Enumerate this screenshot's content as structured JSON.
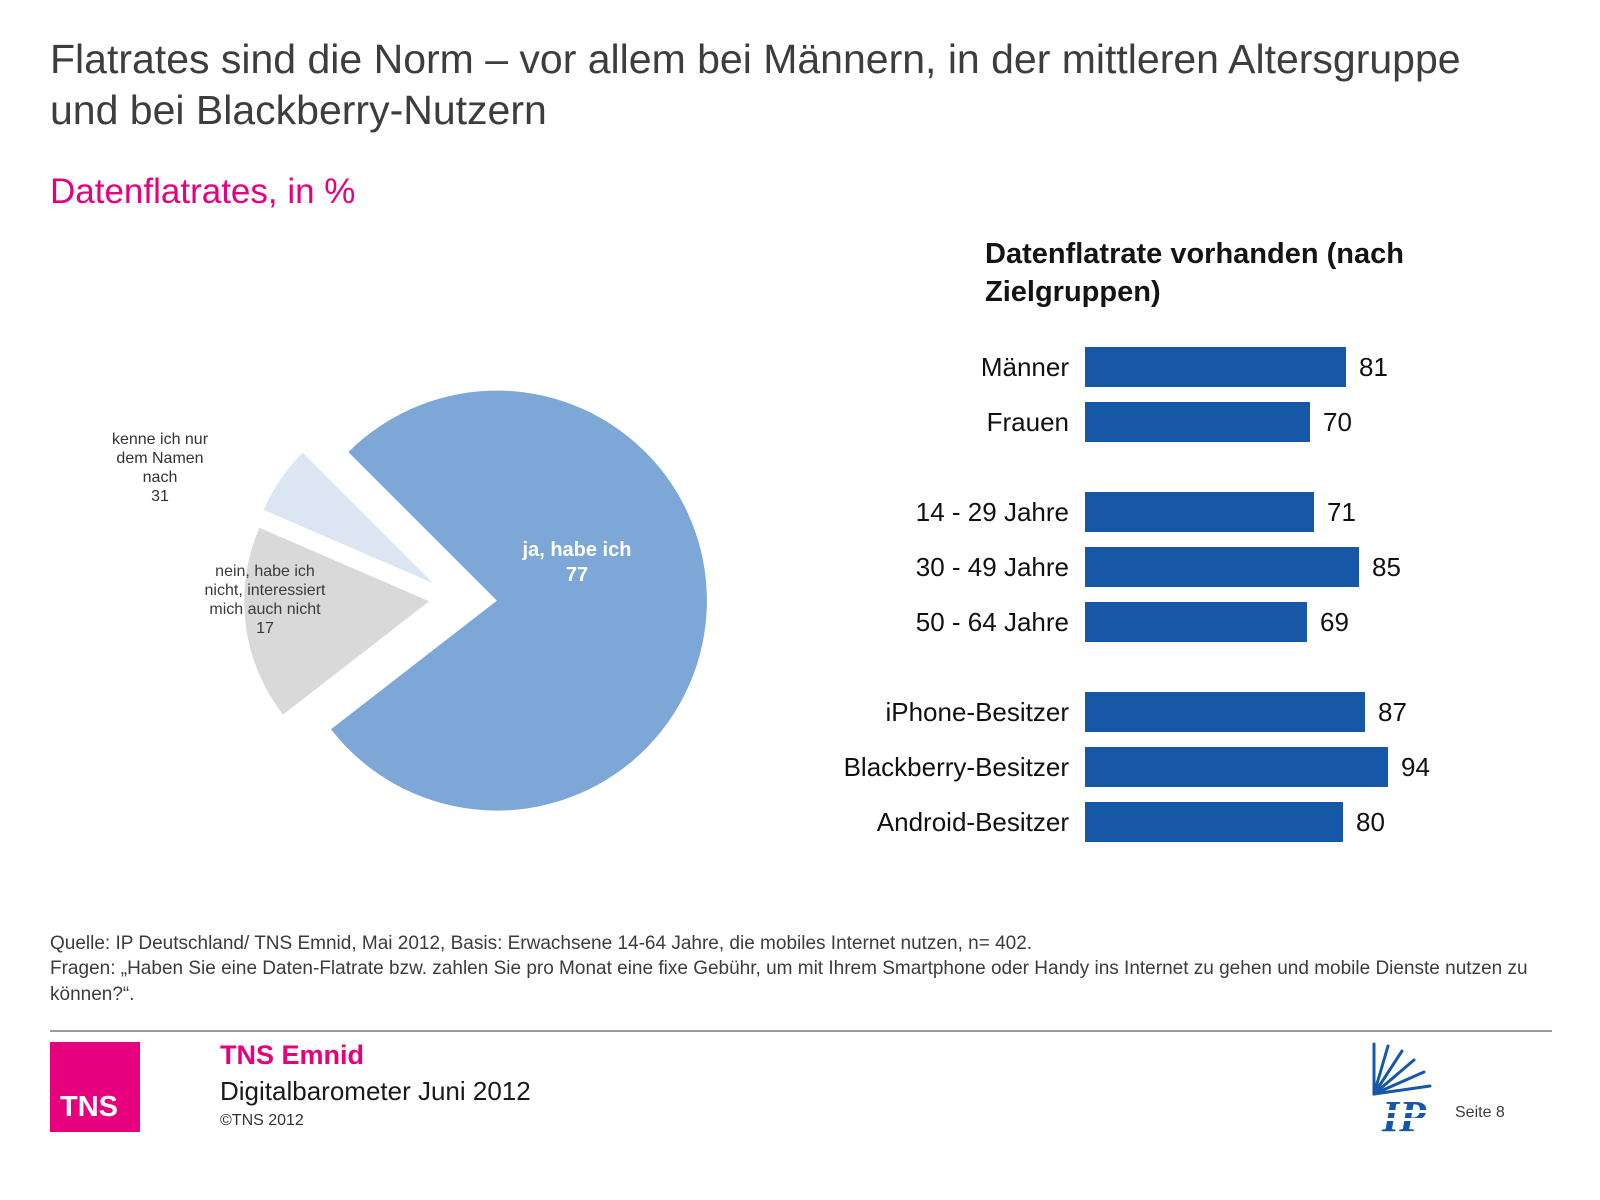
{
  "page": {
    "title": "Flatrates sind die Norm – vor allem bei Männern, in der mittleren Altersgruppe und bei Blackberry-Nutzern",
    "subtitle": "Datenflatrates, in %"
  },
  "chart_data": [
    {
      "type": "pie",
      "title": "Datenflatrates, in %",
      "unit": "%",
      "start_angle_deg": -45,
      "slices": [
        {
          "label": "ja, habe ich",
          "value": 77,
          "color": "#7da7d7",
          "exploded": true,
          "label_color": "#ffffff"
        },
        {
          "label": "nein, habe ich nicht, interessiert mich auch nicht",
          "value": 17,
          "color": "#d9d9d9",
          "label_color": "#3a3a3a"
        },
        {
          "label": "kenne ich nur dem Namen nach",
          "value": 31,
          "color": "#dce6f2",
          "label_color": "#333333"
        }
      ]
    },
    {
      "type": "bar",
      "orientation": "horizontal",
      "title": "Datenflatrate vorhanden (nach Zielgruppen)",
      "bar_color": "#1757a8",
      "xlim": [
        0,
        100
      ],
      "categories": [
        "Männer",
        "Frauen",
        "14 - 29 Jahre",
        "30 - 49 Jahre",
        "50 - 64 Jahre",
        "iPhone-Besitzer",
        "Blackberry-Besitzer",
        "Android-Besitzer"
      ],
      "values": [
        81,
        70,
        71,
        85,
        69,
        87,
        94,
        80
      ],
      "groups": [
        [
          0,
          1
        ],
        [
          2,
          3,
          4
        ],
        [
          5,
          6,
          7
        ]
      ],
      "legend": "none",
      "grid": false
    }
  ],
  "footer": {
    "source": "Quelle: IP Deutschland/ TNS Emnid, Mai 2012, Basis: Erwachsene 14-64 Jahre, die mobiles Internet nutzen, n= 402.",
    "question": "Fragen: „Haben Sie eine Daten-Flatrate bzw. zahlen Sie pro Monat eine fixe Gebühr, um mit Ihrem Smartphone oder Handy ins Internet zu gehen und mobile Dienste nutzen zu können?“."
  },
  "footer_bar": {
    "logo_text": "TNS",
    "brand": "TNS Emnid",
    "product": "Digitalbarometer Juni 2012",
    "copyright": "©TNS 2012",
    "ip_logo_text": "IP",
    "page_label": "Seite 8"
  },
  "colors": {
    "accent_pink": "#e6007e",
    "bar_blue": "#1757a8",
    "pie_blue": "#7da7d7",
    "pie_gray": "#d9d9d9",
    "pie_light_blue": "#dce6f2",
    "title_gray": "#3d3d3d"
  }
}
